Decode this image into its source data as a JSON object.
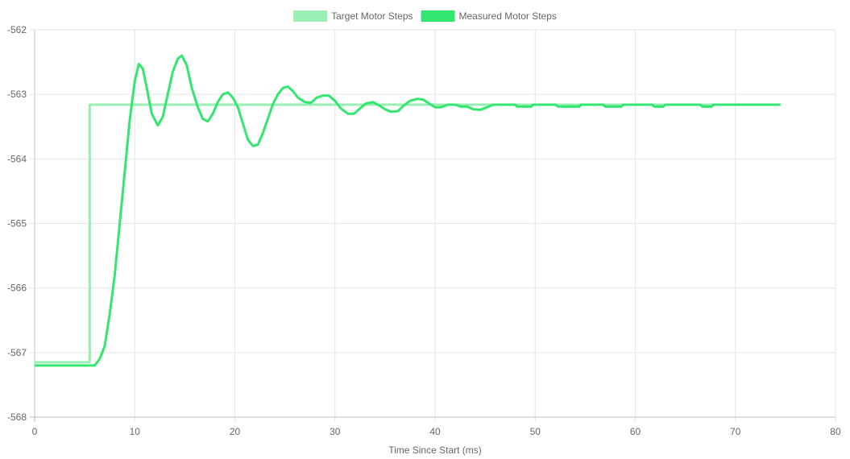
{
  "chart_data": {
    "type": "line",
    "title": "",
    "xlabel": "Time Since Start (ms)",
    "ylabel": "",
    "xlim": [
      0,
      80
    ],
    "ylim": [
      -568,
      -562
    ],
    "x_ticks": [
      0,
      10,
      20,
      30,
      40,
      50,
      60,
      70,
      80
    ],
    "y_ticks": [
      -562,
      -563,
      -564,
      -565,
      -566,
      -567,
      -568
    ],
    "x_tick_labels": [
      "0",
      "10",
      "20",
      "30",
      "40",
      "50",
      "60",
      "70",
      "80"
    ],
    "y_tick_labels": [
      "-562",
      "-563",
      "-564",
      "-565",
      "-566",
      "-567",
      "-568"
    ],
    "grid": true,
    "legend_position": "top-center",
    "series": [
      {
        "name": "Target Motor Steps",
        "color": "#99eeb3",
        "points": [
          [
            0,
            -567.15
          ],
          [
            5.5,
            -567.15
          ],
          [
            5.5,
            -563.16
          ],
          [
            74.5,
            -563.16
          ]
        ]
      },
      {
        "name": "Measured Motor Steps",
        "color": "#33e670",
        "points": [
          [
            0,
            -567.2
          ],
          [
            6.0,
            -567.2
          ],
          [
            6.5,
            -567.1
          ],
          [
            7.0,
            -566.9
          ],
          [
            7.5,
            -566.4
          ],
          [
            8.0,
            -565.8
          ],
          [
            8.5,
            -565.0
          ],
          [
            9.0,
            -564.2
          ],
          [
            9.5,
            -563.4
          ],
          [
            10.0,
            -562.8
          ],
          [
            10.4,
            -562.53
          ],
          [
            10.8,
            -562.6
          ],
          [
            11.2,
            -562.9
          ],
          [
            11.7,
            -563.3
          ],
          [
            12.3,
            -563.48
          ],
          [
            12.8,
            -563.35
          ],
          [
            13.3,
            -563.0
          ],
          [
            13.8,
            -562.65
          ],
          [
            14.3,
            -562.45
          ],
          [
            14.7,
            -562.4
          ],
          [
            15.2,
            -562.55
          ],
          [
            15.7,
            -562.9
          ],
          [
            16.3,
            -563.2
          ],
          [
            16.8,
            -563.38
          ],
          [
            17.3,
            -563.42
          ],
          [
            17.8,
            -563.3
          ],
          [
            18.3,
            -563.12
          ],
          [
            18.8,
            -563.0
          ],
          [
            19.3,
            -562.97
          ],
          [
            19.8,
            -563.05
          ],
          [
            20.3,
            -563.2
          ],
          [
            20.8,
            -563.45
          ],
          [
            21.3,
            -563.7
          ],
          [
            21.8,
            -563.8
          ],
          [
            22.3,
            -563.78
          ],
          [
            22.8,
            -563.6
          ],
          [
            23.3,
            -563.38
          ],
          [
            23.8,
            -563.15
          ],
          [
            24.3,
            -563.0
          ],
          [
            24.8,
            -562.9
          ],
          [
            25.3,
            -562.88
          ],
          [
            25.8,
            -562.95
          ],
          [
            26.3,
            -563.05
          ],
          [
            27.0,
            -563.12
          ],
          [
            27.6,
            -563.13
          ],
          [
            28.2,
            -563.05
          ],
          [
            28.8,
            -563.02
          ],
          [
            29.4,
            -563.02
          ],
          [
            30.0,
            -563.1
          ],
          [
            30.6,
            -563.22
          ],
          [
            31.3,
            -563.3
          ],
          [
            31.9,
            -563.3
          ],
          [
            32.5,
            -563.22
          ],
          [
            33.1,
            -563.14
          ],
          [
            33.8,
            -563.12
          ],
          [
            34.4,
            -563.17
          ],
          [
            35.0,
            -563.23
          ],
          [
            35.6,
            -563.27
          ],
          [
            36.3,
            -563.26
          ],
          [
            36.9,
            -563.17
          ],
          [
            37.5,
            -563.1
          ],
          [
            38.2,
            -563.07
          ],
          [
            38.8,
            -563.08
          ],
          [
            39.4,
            -563.14
          ],
          [
            40.0,
            -563.2
          ],
          [
            40.6,
            -563.2
          ],
          [
            41.3,
            -563.16
          ],
          [
            42.0,
            -563.16
          ],
          [
            42.6,
            -563.19
          ],
          [
            43.2,
            -563.19
          ],
          [
            43.8,
            -563.23
          ],
          [
            44.5,
            -563.24
          ],
          [
            45.2,
            -563.2
          ],
          [
            45.8,
            -563.16
          ],
          [
            48.0,
            -563.16
          ],
          [
            48.2,
            -563.19
          ],
          [
            49.6,
            -563.19
          ],
          [
            49.8,
            -563.16
          ],
          [
            52.0,
            -563.16
          ],
          [
            52.3,
            -563.19
          ],
          [
            54.4,
            -563.19
          ],
          [
            54.6,
            -563.16
          ],
          [
            56.8,
            -563.16
          ],
          [
            57.0,
            -563.19
          ],
          [
            58.6,
            -563.19
          ],
          [
            58.8,
            -563.16
          ],
          [
            61.7,
            -563.16
          ],
          [
            61.9,
            -563.19
          ],
          [
            62.8,
            -563.19
          ],
          [
            63.0,
            -563.16
          ],
          [
            66.5,
            -563.16
          ],
          [
            66.7,
            -563.19
          ],
          [
            67.6,
            -563.19
          ],
          [
            67.8,
            -563.16
          ],
          [
            74.5,
            -563.16
          ]
        ]
      }
    ]
  }
}
